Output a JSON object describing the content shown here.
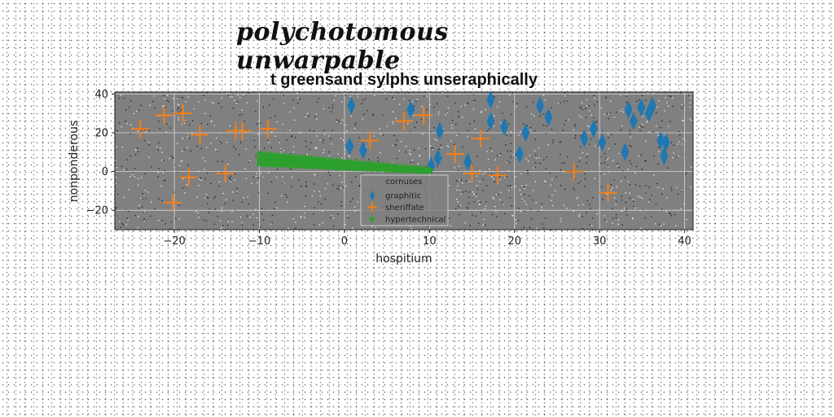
{
  "suptitle": "polychotomous unwarpable",
  "chart_data": {
    "type": "scatter",
    "title": "t greensand sylphs unseraphically",
    "xlabel": "hospitium",
    "ylabel": "nonponderous",
    "xlim": [
      -27,
      41
    ],
    "ylim": [
      -30,
      41
    ],
    "xticks": [
      -20,
      -10,
      0,
      10,
      20,
      30,
      40
    ],
    "yticks": [
      -20,
      0,
      20,
      40
    ],
    "xtick_labels": [
      "−20",
      "−10",
      "0",
      "10",
      "20",
      "30",
      "40"
    ],
    "ytick_labels": [
      "−20",
      "0",
      "20",
      "40"
    ],
    "grid": true,
    "background": "#808080",
    "legend": {
      "title": "cornuses",
      "placement": "lower-center"
    },
    "series": [
      {
        "name": "graphitic",
        "marker": "thin_diamond",
        "color": "#1f77b4",
        "points": [
          [
            0.8,
            34
          ],
          [
            0.6,
            13
          ],
          [
            2.2,
            11
          ],
          [
            7.8,
            32
          ],
          [
            11.2,
            21
          ],
          [
            11.0,
            7
          ],
          [
            10.2,
            3
          ],
          [
            14.5,
            5
          ],
          [
            17.2,
            37
          ],
          [
            17.2,
            26
          ],
          [
            18.8,
            23
          ],
          [
            20.6,
            9
          ],
          [
            21.3,
            20
          ],
          [
            23.0,
            34
          ],
          [
            24.0,
            28
          ],
          [
            28.2,
            17
          ],
          [
            29.3,
            22
          ],
          [
            30.3,
            15
          ],
          [
            33.0,
            10
          ],
          [
            33.4,
            32
          ],
          [
            34.0,
            26
          ],
          [
            34.9,
            33
          ],
          [
            35.8,
            30
          ],
          [
            36.2,
            34
          ],
          [
            37.2,
            16
          ],
          [
            37.6,
            8
          ],
          [
            37.8,
            15
          ]
        ]
      },
      {
        "name": "sheriffate",
        "marker": "plus",
        "color": "#ff7f0e",
        "points": [
          [
            -24.0,
            22
          ],
          [
            -21.2,
            29
          ],
          [
            -19.0,
            30
          ],
          [
            -17.0,
            19
          ],
          [
            -18.3,
            -3
          ],
          [
            -20.2,
            -16
          ],
          [
            -14.0,
            -1
          ],
          [
            -12.8,
            21
          ],
          [
            -12.0,
            21
          ],
          [
            -9.0,
            22
          ],
          [
            3.0,
            16
          ],
          [
            7.0,
            26
          ],
          [
            9.3,
            29
          ],
          [
            13.0,
            9
          ],
          [
            15.0,
            -1
          ],
          [
            16.0,
            17
          ],
          [
            18.0,
            -2
          ],
          [
            27.0,
            0
          ],
          [
            31.0,
            -11
          ]
        ]
      },
      {
        "name": "hypertechnical",
        "marker": "star",
        "color": "#2ca02c",
        "line": {
          "x0": -10,
          "y0": 6.5,
          "x1": 10,
          "y1": 0.5,
          "count": 60
        }
      }
    ]
  }
}
